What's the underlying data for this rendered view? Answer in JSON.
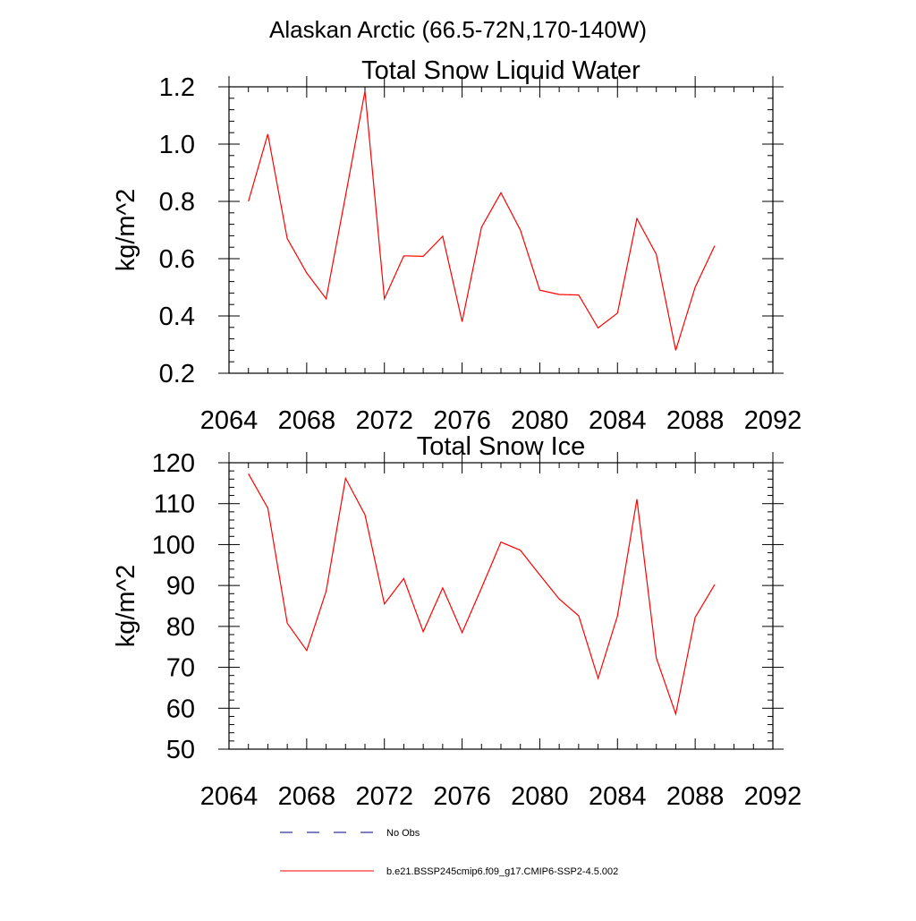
{
  "figure_title": "Alaskan Arctic (66.5-72N,170-140W)",
  "legend": {
    "items": [
      {
        "label": "No Obs",
        "color": "#000080",
        "dash": "dashed"
      },
      {
        "label": "b.e21.BSSP245cmip6.f09_g17.CMIP6-SSP2-4.5.002",
        "color": "#ff0000",
        "dash": "solid"
      }
    ]
  },
  "chart_data": [
    {
      "type": "line",
      "title": "Total Snow Liquid Water",
      "xlabel": "",
      "ylabel": "kg/m^2",
      "xlim": [
        2064,
        2092
      ],
      "ylim": [
        0.2,
        1.2
      ],
      "xticks": [
        2064,
        2068,
        2072,
        2076,
        2080,
        2084,
        2088,
        2092
      ],
      "xtick_labels": [
        "2064",
        "2068",
        "2072",
        "2076",
        "2080",
        "2084",
        "2088",
        "2092"
      ],
      "yticks": [
        0.2,
        0.4,
        0.6,
        0.8,
        1.0,
        1.2
      ],
      "ytick_labels": [
        "0.2",
        "0.4",
        "0.6",
        "0.8",
        "1.0",
        "1.2"
      ],
      "x": [
        2065,
        2066,
        2067,
        2068,
        2069,
        2070,
        2071,
        2072,
        2073,
        2074,
        2075,
        2076,
        2077,
        2078,
        2079,
        2080,
        2081,
        2082,
        2083,
        2084,
        2085,
        2086,
        2087,
        2088,
        2089
      ],
      "series": [
        {
          "color": "#ff0000",
          "values": [
            0.8,
            1.035,
            0.67,
            0.55,
            0.46,
            0.82,
            1.185,
            0.46,
            0.61,
            0.608,
            0.678,
            0.38,
            0.71,
            0.83,
            0.7,
            0.49,
            0.475,
            0.473,
            0.358,
            0.41,
            0.74,
            0.615,
            0.28,
            0.5,
            0.645
          ]
        }
      ],
      "grid": false
    },
    {
      "type": "line",
      "title": "Total Snow Ice",
      "xlabel": "",
      "ylabel": "kg/m^2",
      "xlim": [
        2064,
        2092
      ],
      "ylim": [
        50,
        120
      ],
      "xticks": [
        2064,
        2068,
        2072,
        2076,
        2080,
        2084,
        2088,
        2092
      ],
      "xtick_labels": [
        "2064",
        "2068",
        "2072",
        "2076",
        "2080",
        "2084",
        "2088",
        "2092"
      ],
      "yticks": [
        50,
        60,
        70,
        80,
        90,
        100,
        110,
        120
      ],
      "ytick_labels": [
        "50",
        "60",
        "70",
        "80",
        "90",
        "100",
        "110",
        "120"
      ],
      "x": [
        2065,
        2066,
        2067,
        2068,
        2069,
        2070,
        2071,
        2072,
        2073,
        2074,
        2075,
        2076,
        2077,
        2078,
        2079,
        2080,
        2081,
        2082,
        2083,
        2084,
        2085,
        2086,
        2087,
        2088,
        2089
      ],
      "series": [
        {
          "color": "#ff0000",
          "values": [
            117.3,
            108.9,
            80.8,
            74.1,
            88.6,
            116.2,
            107.3,
            85.5,
            91.7,
            78.7,
            89.4,
            78.5,
            89.4,
            100.6,
            98.6,
            92.6,
            86.7,
            82.6,
            67.3,
            82.6,
            111.1,
            72.3,
            58.6,
            82.2,
            90.2
          ]
        }
      ],
      "grid": false
    }
  ]
}
